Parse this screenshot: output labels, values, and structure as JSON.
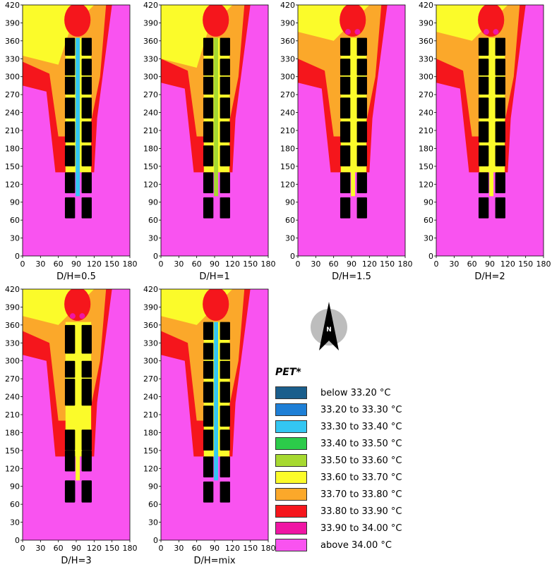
{
  "legend": {
    "title": "PET*",
    "items": [
      {
        "label": "below 33.20 °C",
        "color": "#1a5e8c"
      },
      {
        "label": "33.20 to 33.30 °C",
        "color": "#1e7fd6"
      },
      {
        "label": "33.30 to 33.40 °C",
        "color": "#33c6f2"
      },
      {
        "label": "33.40 to 33.50 °C",
        "color": "#2ccb4a"
      },
      {
        "label": "33.50 to 33.60 °C",
        "color": "#a6d930"
      },
      {
        "label": "33.60 to 33.70 °C",
        "color": "#fbfb2a"
      },
      {
        "label": "33.70 to 33.80 °C",
        "color": "#fba82a"
      },
      {
        "label": "33.80 to 33.90 °C",
        "color": "#f5161c"
      },
      {
        "label": "33.90 to 34.00 °C",
        "color": "#ef16a4"
      },
      {
        "label": "above 34.00 °C",
        "color": "#f953f0"
      }
    ]
  },
  "compass": {
    "label": "N"
  },
  "chart_data": [
    {
      "type": "heatmap",
      "title": "D/H=0.5",
      "xlim": [
        0,
        180
      ],
      "ylim": [
        0,
        420
      ],
      "xticks": [
        0,
        30,
        60,
        90,
        120,
        150,
        180
      ],
      "yticks": [
        0,
        30,
        60,
        90,
        120,
        150,
        180,
        210,
        240,
        270,
        300,
        330,
        360,
        390,
        420
      ],
      "buildings_rows": 7,
      "buildings_cols": 2
    },
    {
      "type": "heatmap",
      "title": "D/H=1",
      "xlim": [
        0,
        180
      ],
      "ylim": [
        0,
        420
      ],
      "xticks": [
        0,
        30,
        60,
        90,
        120,
        150,
        180
      ],
      "yticks": [
        0,
        30,
        60,
        90,
        120,
        150,
        180,
        210,
        240,
        270,
        300,
        330,
        360,
        390,
        420
      ],
      "buildings_rows": 7,
      "buildings_cols": 2
    },
    {
      "type": "heatmap",
      "title": "D/H=1.5",
      "xlim": [
        0,
        180
      ],
      "ylim": [
        0,
        420
      ],
      "xticks": [
        0,
        30,
        60,
        90,
        120,
        150,
        180
      ],
      "yticks": [
        0,
        30,
        60,
        90,
        120,
        150,
        180,
        210,
        240,
        270,
        300,
        330,
        360,
        390,
        420
      ],
      "buildings_rows": 7,
      "buildings_cols": 2
    },
    {
      "type": "heatmap",
      "title": "D/H=2",
      "xlim": [
        0,
        180
      ],
      "ylim": [
        0,
        420
      ],
      "xticks": [
        0,
        30,
        60,
        90,
        120,
        150,
        180
      ],
      "yticks": [
        0,
        30,
        60,
        90,
        120,
        150,
        180,
        210,
        240,
        270,
        300,
        330,
        360,
        390,
        420
      ],
      "buildings_rows": 7,
      "buildings_cols": 2
    },
    {
      "type": "heatmap",
      "title": "D/H=3",
      "xlim": [
        0,
        180
      ],
      "ylim": [
        0,
        420
      ],
      "xticks": [
        0,
        30,
        60,
        90,
        120,
        150,
        180
      ],
      "yticks": [
        0,
        30,
        60,
        90,
        120,
        150,
        180,
        210,
        240,
        270,
        300,
        330,
        360,
        390,
        420
      ],
      "buildings_rows": 6,
      "buildings_cols": 2
    },
    {
      "type": "heatmap",
      "title": "D/H=mix",
      "xlim": [
        0,
        180
      ],
      "ylim": [
        0,
        420
      ],
      "xticks": [
        0,
        30,
        60,
        90,
        120,
        150,
        180
      ],
      "yticks": [
        0,
        30,
        60,
        90,
        120,
        150,
        180,
        210,
        240,
        270,
        300,
        330,
        360,
        390,
        420
      ],
      "buildings_rows": 7,
      "buildings_cols": 2
    }
  ]
}
